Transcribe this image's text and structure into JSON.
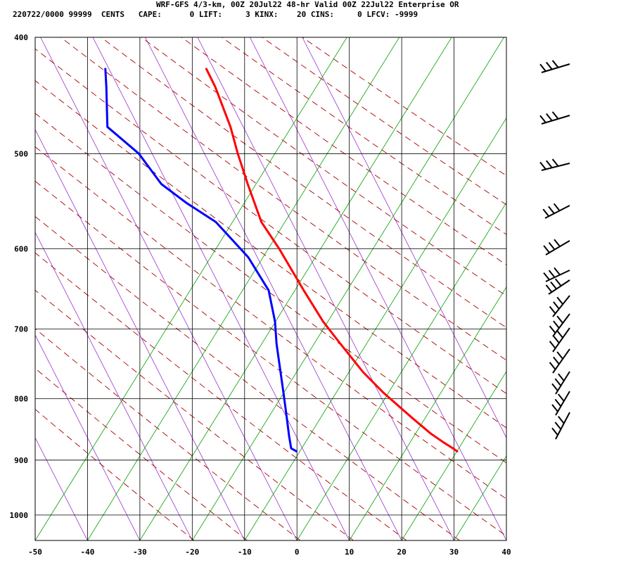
{
  "header": {
    "title": "WRF-GFS 4/3-km, 00Z 20Jul22 48-hr Valid 00Z 22Jul22 Enterprise OR",
    "info": "220722/0000 99999  CENTS   CAPE:      0 LIFT:     3 KINX:    20 CINS:     0 LFCV: -9999"
  },
  "colors": {
    "temperature": "#ff0000",
    "dewpoint": "#0000ff",
    "dry_adiabat": "#aa0000",
    "moist_adiabat": "#00a000",
    "isotherm": "#9933cc",
    "grid": "#000000"
  },
  "chart_data": {
    "type": "skew-t",
    "x_ticks": [
      "-50",
      "-40",
      "-30",
      "-20",
      "-10",
      "0",
      "10",
      "20",
      "30",
      "40"
    ],
    "y_ticks": [
      "400",
      "500",
      "600",
      "700",
      "800",
      "900",
      "1000"
    ],
    "xlim": [
      -50,
      40
    ],
    "ylim": [
      1050,
      400
    ],
    "grid": true,
    "series": [
      {
        "key": "temperature",
        "points": [
          {
            "p": 885,
            "x": 30.6
          },
          {
            "p": 880,
            "x": 29.8
          },
          {
            "p": 870,
            "x": 28.0
          },
          {
            "p": 855,
            "x": 25.5
          },
          {
            "p": 830,
            "x": 22.0
          },
          {
            "p": 790,
            "x": 16.4
          },
          {
            "p": 760,
            "x": 12.6
          },
          {
            "p": 720,
            "x": 8.3
          },
          {
            "p": 690,
            "x": 5.0
          },
          {
            "p": 650,
            "x": 1.3
          },
          {
            "p": 600,
            "x": -3.4
          },
          {
            "p": 570,
            "x": -6.8
          },
          {
            "p": 530,
            "x": -9.4
          },
          {
            "p": 500,
            "x": -11.3
          },
          {
            "p": 475,
            "x": -12.7
          },
          {
            "p": 440,
            "x": -15.6
          },
          {
            "p": 425,
            "x": -17.3
          }
        ]
      },
      {
        "key": "dewpoint",
        "points": [
          {
            "p": 885,
            "x": -0.1
          },
          {
            "p": 880,
            "x": -1.1
          },
          {
            "p": 860,
            "x": -1.5
          },
          {
            "p": 820,
            "x": -2.1
          },
          {
            "p": 790,
            "x": -2.6
          },
          {
            "p": 720,
            "x": -3.9
          },
          {
            "p": 690,
            "x": -4.2
          },
          {
            "p": 650,
            "x": -5.4
          },
          {
            "p": 610,
            "x": -9.3
          },
          {
            "p": 600,
            "x": -10.8
          },
          {
            "p": 570,
            "x": -15.5
          },
          {
            "p": 550,
            "x": -21.0
          },
          {
            "p": 530,
            "x": -25.9
          },
          {
            "p": 500,
            "x": -30.2
          },
          {
            "p": 475,
            "x": -36.2
          },
          {
            "p": 440,
            "x": -36.4
          },
          {
            "p": 425,
            "x": -36.6
          }
        ]
      }
    ]
  }
}
